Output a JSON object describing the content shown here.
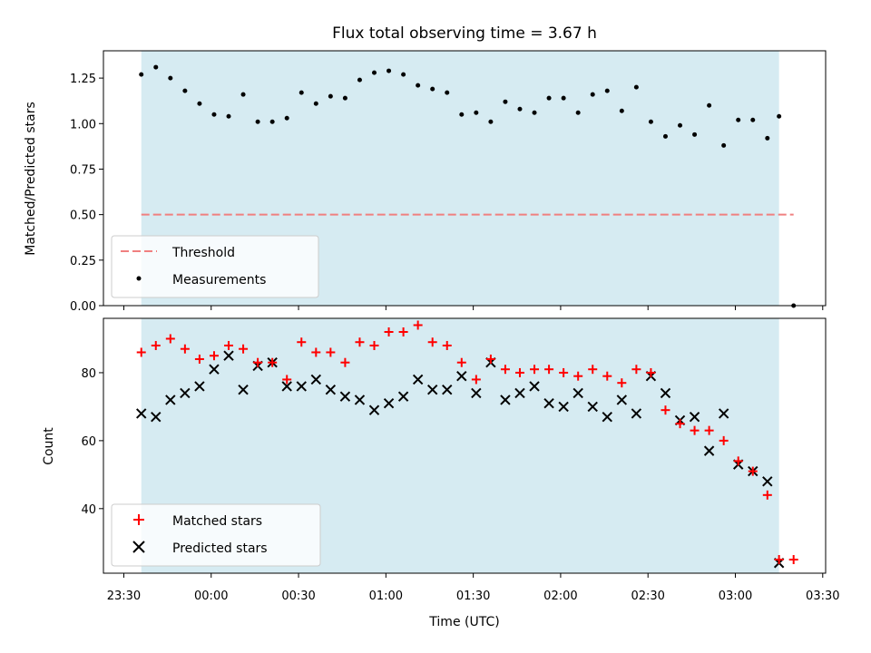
{
  "title": "Flux total observing time = 3.67 h",
  "colors": {
    "span": "#add8e6",
    "threshold": "#f08080",
    "measurement": "#000000",
    "matched": "#ff0000",
    "predicted": "#000000"
  },
  "x_ticks": [
    "23:30",
    "00:00",
    "00:30",
    "01:00",
    "01:30",
    "02:00",
    "02:30",
    "03:00",
    "03:30"
  ],
  "xlabel": "Time (UTC)",
  "chart_data": [
    {
      "type": "scatter",
      "ylabel": "Matched/Predicted stars",
      "xlim": [
        "23:23",
        "03:31"
      ],
      "ylim": [
        0,
        1.4
      ],
      "yticks": [
        "0.00",
        "0.25",
        "0.50",
        "0.75",
        "1.00",
        "1.25"
      ],
      "observing_span": [
        "23:36",
        "03:15"
      ],
      "threshold": {
        "name": "Threshold",
        "value": 0.5,
        "x_range": [
          "23:36",
          "03:20"
        ]
      },
      "series": [
        {
          "name": "Measurements",
          "x": [
            "23:36",
            "23:41",
            "23:46",
            "23:51",
            "23:56",
            "00:01",
            "00:06",
            "00:11",
            "00:16",
            "00:21",
            "00:26",
            "00:31",
            "00:36",
            "00:41",
            "00:46",
            "00:51",
            "00:56",
            "01:01",
            "01:06",
            "01:11",
            "01:16",
            "01:21",
            "01:26",
            "01:31",
            "01:36",
            "01:41",
            "01:46",
            "01:51",
            "01:56",
            "02:01",
            "02:06",
            "02:11",
            "02:16",
            "02:21",
            "02:26",
            "02:31",
            "02:36",
            "02:41",
            "02:46",
            "02:51",
            "02:56",
            "03:01",
            "03:06",
            "03:11",
            "03:15",
            "03:20"
          ],
          "y": [
            1.27,
            1.31,
            1.25,
            1.18,
            1.11,
            1.05,
            1.04,
            1.16,
            1.01,
            1.01,
            1.03,
            1.17,
            1.11,
            1.15,
            1.14,
            1.24,
            1.28,
            1.29,
            1.27,
            1.21,
            1.19,
            1.17,
            1.05,
            1.06,
            1.01,
            1.12,
            1.08,
            1.06,
            1.14,
            1.14,
            1.06,
            1.16,
            1.18,
            1.07,
            1.2,
            1.01,
            0.93,
            0.99,
            0.94,
            1.1,
            0.88,
            1.02,
            1.02,
            0.92,
            1.04,
            0.0
          ]
        }
      ]
    },
    {
      "type": "scatter",
      "ylabel": "Count",
      "xlim": [
        "23:23",
        "03:31"
      ],
      "ylim": [
        21,
        96
      ],
      "yticks": [
        "40",
        "60",
        "80"
      ],
      "observing_span": [
        "23:36",
        "03:15"
      ],
      "series": [
        {
          "name": "Matched stars",
          "marker": "+",
          "x": [
            "23:36",
            "23:41",
            "23:46",
            "23:51",
            "23:56",
            "00:01",
            "00:06",
            "00:11",
            "00:16",
            "00:21",
            "00:26",
            "00:31",
            "00:36",
            "00:41",
            "00:46",
            "00:51",
            "00:56",
            "01:01",
            "01:06",
            "01:11",
            "01:16",
            "01:21",
            "01:26",
            "01:31",
            "01:36",
            "01:41",
            "01:46",
            "01:51",
            "01:56",
            "02:01",
            "02:06",
            "02:11",
            "02:16",
            "02:21",
            "02:26",
            "02:31",
            "02:36",
            "02:41",
            "02:46",
            "02:51",
            "02:56",
            "03:01",
            "03:06",
            "03:11",
            "03:15",
            "03:20"
          ],
          "y": [
            86,
            88,
            90,
            87,
            84,
            85,
            88,
            87,
            83,
            83,
            78,
            89,
            86,
            86,
            83,
            89,
            88,
            92,
            92,
            94,
            89,
            88,
            83,
            78,
            84,
            81,
            80,
            81,
            81,
            80,
            79,
            81,
            79,
            77,
            81,
            80,
            69,
            65,
            63,
            63,
            60,
            54,
            51,
            44,
            25,
            25
          ]
        },
        {
          "name": "Predicted stars",
          "marker": "x",
          "x": [
            "23:36",
            "23:41",
            "23:46",
            "23:51",
            "23:56",
            "00:01",
            "00:06",
            "00:11",
            "00:16",
            "00:21",
            "00:26",
            "00:31",
            "00:36",
            "00:41",
            "00:46",
            "00:51",
            "00:56",
            "01:01",
            "01:06",
            "01:11",
            "01:16",
            "01:21",
            "01:26",
            "01:31",
            "01:36",
            "01:41",
            "01:46",
            "01:51",
            "01:56",
            "02:01",
            "02:06",
            "02:11",
            "02:16",
            "02:21",
            "02:26",
            "02:31",
            "02:36",
            "02:41",
            "02:46",
            "02:51",
            "02:56",
            "03:01",
            "03:06",
            "03:11",
            "03:15"
          ],
          "y": [
            68,
            67,
            72,
            74,
            76,
            81,
            85,
            75,
            82,
            83,
            76,
            76,
            78,
            75,
            73,
            72,
            69,
            71,
            73,
            78,
            75,
            75,
            79,
            74,
            83,
            72,
            74,
            76,
            71,
            70,
            74,
            70,
            67,
            72,
            68,
            79,
            74,
            66,
            67,
            57,
            68,
            53,
            51,
            48,
            24
          ]
        }
      ],
      "legend_position": "lower-left"
    }
  ]
}
